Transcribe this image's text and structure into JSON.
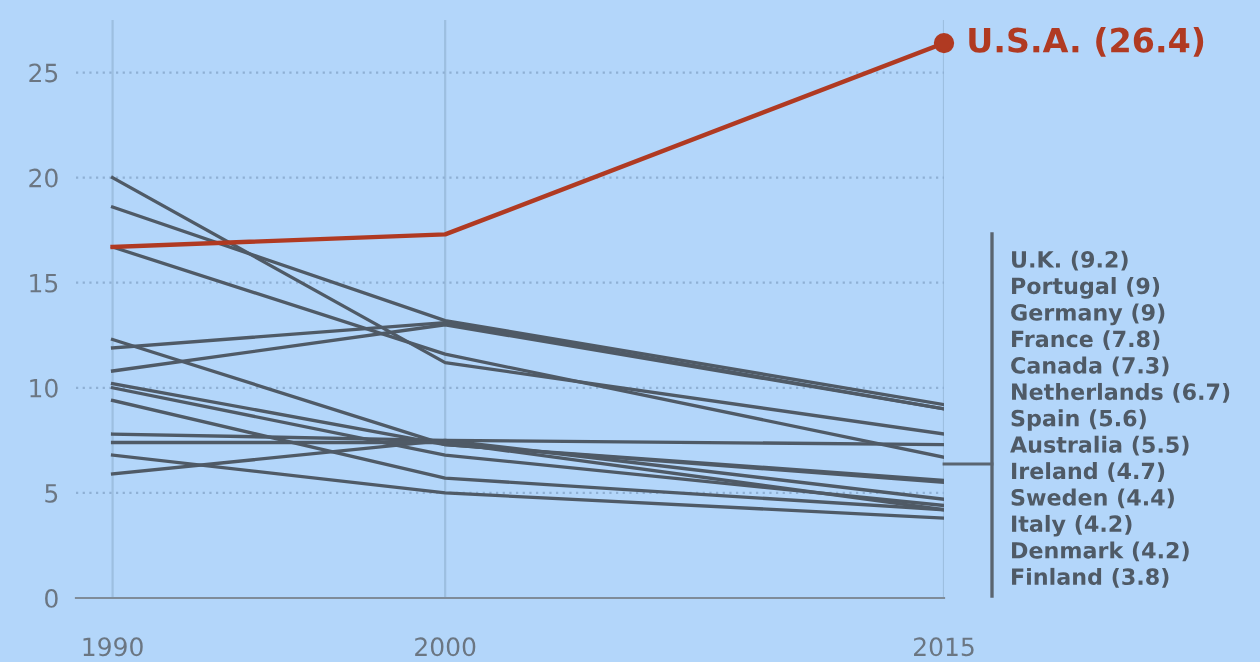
{
  "chart_data": {
    "type": "line",
    "x": [
      1990,
      2000,
      2015
    ],
    "xlim": [
      1988.9,
      2015
    ],
    "xticks": [
      1990,
      2000,
      2015
    ],
    "ylim": [
      0,
      27.5
    ],
    "yticks": [
      0,
      5,
      10,
      15,
      20,
      25
    ],
    "grid": true,
    "legend": "right",
    "series": [
      {
        "name": "U.K. (9.2)",
        "color": "#4f5a66",
        "values": [
          18.6,
          13.2,
          9.2
        ]
      },
      {
        "name": "Portugal (9)",
        "color": "#4f5a66",
        "values": [
          10.8,
          13.0,
          9
        ]
      },
      {
        "name": "Germany (9)",
        "color": "#4f5a66",
        "values": [
          11.9,
          13.1,
          9
        ]
      },
      {
        "name": "France (7.8)",
        "color": "#4f5a66",
        "values": [
          20.0,
          11.2,
          7.8
        ]
      },
      {
        "name": "Canada (7.3)",
        "color": "#4f5a66",
        "values": [
          7.8,
          7.5,
          7.3
        ]
      },
      {
        "name": "Netherlands (6.7)",
        "color": "#4f5a66",
        "values": [
          16.7,
          11.6,
          6.7
        ]
      },
      {
        "name": "Spain (5.6)",
        "color": "#4f5a66",
        "values": [
          12.3,
          7.3,
          5.6
        ]
      },
      {
        "name": "Australia (5.5)",
        "color": "#4f5a66",
        "values": [
          10.2,
          7.3,
          5.5
        ]
      },
      {
        "name": "Ireland (4.7)",
        "color": "#4f5a66",
        "values": [
          5.9,
          7.5,
          4.7
        ]
      },
      {
        "name": "Sweden (4.4)",
        "color": "#4f5a66",
        "values": [
          10.0,
          6.8,
          4.4
        ]
      },
      {
        "name": "Italy (4.2)",
        "color": "#4f5a66",
        "values": [
          7.4,
          7.4,
          4.2
        ]
      },
      {
        "name": "Denmark (4.2)",
        "color": "#4f5a66",
        "values": [
          9.4,
          5.7,
          4.2
        ]
      },
      {
        "name": "Finland (3.8)",
        "color": "#4f5a66",
        "values": [
          6.8,
          5.0,
          3.8
        ]
      },
      {
        "color": "#b03a22",
        "values": [
          16.7,
          17.3,
          26.4
        ],
        "value_labels": [
          null,
          null,
          "U.S.A. (26.4)"
        ]
      }
    ]
  }
}
